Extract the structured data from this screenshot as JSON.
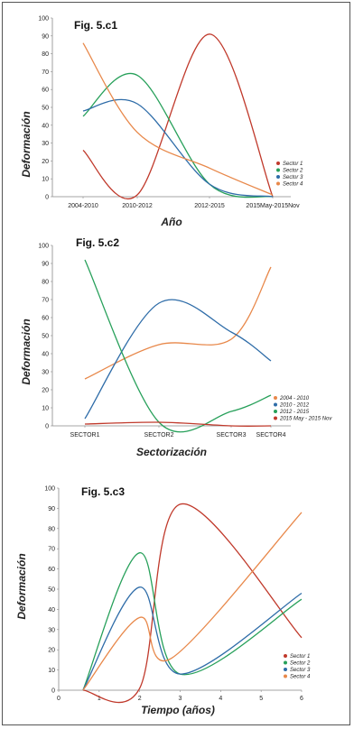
{
  "chart_data": [
    {
      "type": "line",
      "title": "Fig. 5.c1",
      "xlabel": "Año",
      "ylabel": "Deformación",
      "categories": [
        "2004-2010",
        "2010-2012",
        "2012-2015",
        "2015May-2015Nov"
      ],
      "ylim": [
        0,
        100
      ],
      "yticks": [
        0,
        10,
        20,
        30,
        40,
        50,
        60,
        70,
        80,
        90,
        100
      ],
      "legend_position": "bottom-right",
      "series": [
        {
          "name": "Sector 1",
          "color": "#c0392b",
          "values": [
            26,
            1,
            91,
            0
          ]
        },
        {
          "name": "Sector 2",
          "color": "#27a05a",
          "values": [
            45,
            68,
            7,
            0
          ]
        },
        {
          "name": "Sector 3",
          "color": "#2e6ca8",
          "values": [
            48,
            52,
            7,
            0
          ]
        },
        {
          "name": "Sector 4",
          "color": "#e8884a",
          "values": [
            86,
            36,
            16,
            1
          ]
        }
      ]
    },
    {
      "type": "line",
      "title": "Fig. 5.c2",
      "xlabel": "Sectorización",
      "ylabel": "Deformación",
      "categories": [
        "SECTOR1",
        "SECTOR2",
        "SECTOR3",
        "SECTOR4"
      ],
      "ylim": [
        0,
        100
      ],
      "yticks": [
        0,
        10,
        20,
        30,
        40,
        50,
        60,
        70,
        80,
        90,
        100
      ],
      "legend_position": "bottom-right",
      "series": [
        {
          "name": "2004 - 2010",
          "color": "#e8884a",
          "values": [
            26,
            45,
            48,
            88
          ]
        },
        {
          "name": "2010 - 2012",
          "color": "#2e6ca8",
          "values": [
            4,
            68,
            52,
            36
          ]
        },
        {
          "name": "2012 - 2015",
          "color": "#27a05a",
          "values": [
            92,
            2,
            8,
            17
          ]
        },
        {
          "name": "2015 May - 2015 Nov",
          "color": "#c0392b",
          "values": [
            1,
            2,
            0,
            0
          ]
        }
      ]
    },
    {
      "type": "line",
      "title": "Fig. 5.c3",
      "xlabel": "Tiempo (años)",
      "ylabel": "Deformación",
      "xlim": [
        0,
        6
      ],
      "xticks": [
        0,
        1,
        2,
        3,
        4,
        5,
        6
      ],
      "ylim": [
        0,
        100
      ],
      "yticks": [
        0,
        10,
        20,
        30,
        40,
        50,
        60,
        70,
        80,
        90,
        100
      ],
      "legend_position": "bottom-right",
      "series": [
        {
          "name": "Sector 1",
          "color": "#c0392b",
          "x": [
            0.6,
            2,
            3,
            6
          ],
          "values": [
            0,
            1,
            92,
            26
          ]
        },
        {
          "name": "Sector 2",
          "color": "#27a05a",
          "x": [
            0.6,
            2,
            3,
            6
          ],
          "values": [
            0,
            68,
            8,
            45
          ]
        },
        {
          "name": "Sector 3",
          "color": "#2e6ca8",
          "x": [
            0.6,
            2,
            3,
            6
          ],
          "values": [
            0,
            51,
            8,
            48
          ]
        },
        {
          "name": "Sector 4",
          "color": "#e8884a",
          "x": [
            0.6,
            2,
            2.8,
            6
          ],
          "values": [
            0,
            36,
            16,
            88
          ]
        }
      ]
    }
  ]
}
